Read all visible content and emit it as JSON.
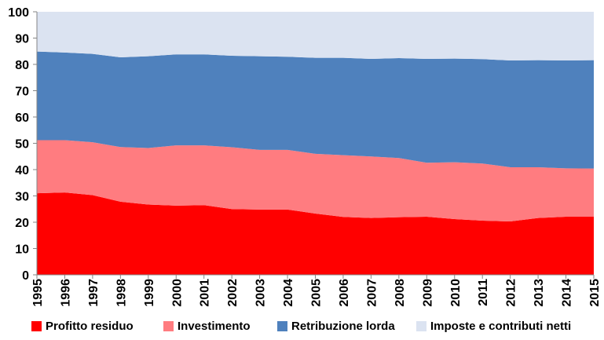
{
  "chart_data": {
    "type": "area",
    "stacked": true,
    "x": [
      "1995",
      "1996",
      "1997",
      "1998",
      "1999",
      "2000",
      "2001",
      "2002",
      "2003",
      "2004",
      "2005",
      "2006",
      "2007",
      "2008",
      "2009",
      "2010",
      "2011",
      "2012",
      "2013",
      "2014",
      "2015"
    ],
    "ylim": [
      0,
      100
    ],
    "yticks": [
      "0",
      "10",
      "20",
      "30",
      "40",
      "50",
      "60",
      "70",
      "80",
      "90",
      "100"
    ],
    "grid": false,
    "legend_position": "bottom",
    "series": [
      {
        "name": "Profitto residuo",
        "color": "#ff0000",
        "values": [
          31.0,
          31.3,
          30.3,
          27.8,
          26.7,
          26.3,
          26.5,
          25.0,
          24.8,
          24.8,
          23.3,
          22.0,
          21.6,
          21.9,
          22.1,
          21.2,
          20.6,
          20.3,
          21.6,
          22.1,
          22.1
        ]
      },
      {
        "name": "Investimento",
        "color": "#ff7c80",
        "values": [
          20.2,
          19.9,
          20.1,
          20.8,
          21.5,
          22.9,
          22.7,
          23.5,
          22.7,
          22.7,
          22.7,
          23.5,
          23.4,
          22.5,
          20.5,
          21.6,
          21.7,
          20.6,
          19.3,
          18.4,
          18.3
        ]
      },
      {
        "name": "Retribuzione lorda",
        "color": "#4f81bd",
        "values": [
          33.7,
          33.3,
          33.6,
          34.1,
          34.9,
          34.6,
          34.6,
          34.8,
          35.6,
          35.4,
          36.5,
          37.0,
          37.1,
          38.0,
          39.5,
          39.4,
          39.7,
          40.6,
          40.7,
          41.0,
          41.2
        ]
      },
      {
        "name": "Imposte e contributi netti",
        "color": "#dbe3f1",
        "values": [
          15.1,
          15.5,
          16.0,
          17.3,
          16.9,
          16.2,
          16.2,
          16.7,
          16.9,
          17.1,
          17.5,
          17.5,
          17.9,
          17.6,
          17.9,
          17.8,
          18.0,
          18.5,
          18.4,
          18.5,
          18.4
        ]
      }
    ]
  }
}
